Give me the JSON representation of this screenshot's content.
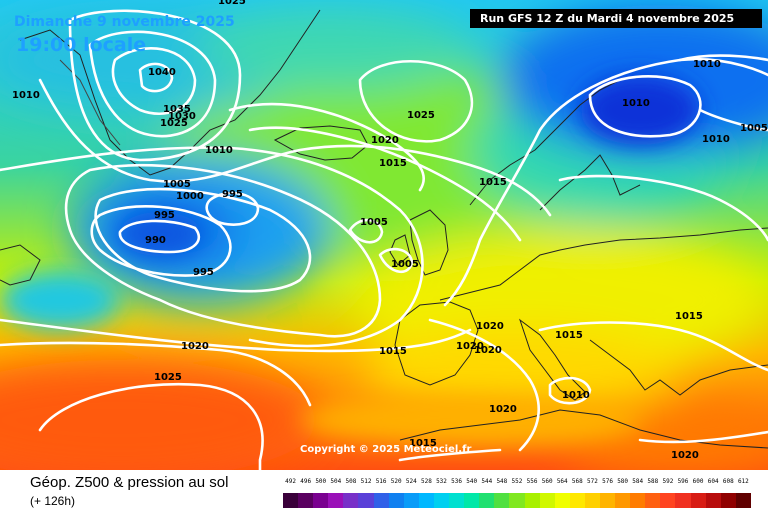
{
  "header": {
    "date": "Dimanche 9 novembre 2025",
    "time": "19:00 locale",
    "run": "Run GFS 12 Z du Mardi 4 novembre 2025"
  },
  "copyright": "Copyright © 2025 Meteociel.fr",
  "legend": {
    "title": "Géop. Z500 & pression au sol",
    "subtitle": "(+ 126h)",
    "scale_values": [
      "492",
      "496",
      "500",
      "504",
      "508",
      "512",
      "516",
      "520",
      "524",
      "528",
      "532",
      "536",
      "540",
      "544",
      "548",
      "552",
      "556",
      "560",
      "564",
      "568",
      "572",
      "576",
      "580",
      "584",
      "588",
      "592",
      "596",
      "600",
      "604",
      "608",
      "612"
    ],
    "scale_colors": [
      "#3a003a",
      "#5a0060",
      "#7a0090",
      "#9a10b8",
      "#7830c8",
      "#5a40d8",
      "#3060e8",
      "#1080f0",
      "#0a9cf8",
      "#00b8ff",
      "#00d0f0",
      "#00e0d0",
      "#00e8a8",
      "#20e070",
      "#50e040",
      "#80e820",
      "#a8f000",
      "#d0f800",
      "#f0ff00",
      "#ffe800",
      "#ffd000",
      "#ffb400",
      "#ff9800",
      "#ff7c00",
      "#ff6010",
      "#ff4420",
      "#f03020",
      "#d81c14",
      "#b80c0c",
      "#900000",
      "#600000"
    ]
  },
  "isobar_labels": [
    {
      "id": "1025-top",
      "text": "1025"
    },
    {
      "id": "1010-nw",
      "text": "1010"
    },
    {
      "id": "1040",
      "text": "1040"
    },
    {
      "id": "1035",
      "text": "1035"
    },
    {
      "id": "1030",
      "text": "1030"
    },
    {
      "id": "1025-greenland",
      "text": "1025"
    },
    {
      "id": "1010-greenland",
      "text": "1010"
    },
    {
      "id": "1005-low",
      "text": "1005"
    },
    {
      "id": "1000",
      "text": "1000"
    },
    {
      "id": "995-east",
      "text": "995"
    },
    {
      "id": "995-inner",
      "text": "995"
    },
    {
      "id": "990",
      "text": "990"
    },
    {
      "id": "995-south",
      "text": "995"
    },
    {
      "id": "1025-atlantic",
      "text": "1025"
    },
    {
      "id": "1020-iceland",
      "text": "1020"
    },
    {
      "id": "1015-iceland",
      "text": "1015"
    },
    {
      "id": "1015-norway",
      "text": "1015"
    },
    {
      "id": "1005-ireland",
      "text": "1005"
    },
    {
      "id": "1005-uk",
      "text": "1005"
    },
    {
      "id": "1010-scand",
      "text": "1010"
    },
    {
      "id": "1010-russia-n",
      "text": "1010"
    },
    {
      "id": "1005-russia",
      "text": "1005"
    },
    {
      "id": "1010-russia-s",
      "text": "1010"
    },
    {
      "id": "1020-france",
      "text": "1020"
    },
    {
      "id": "1015-alps",
      "text": "1015"
    },
    {
      "id": "1015-spain",
      "text": "1015"
    },
    {
      "id": "1020-spain-a",
      "text": "1020"
    },
    {
      "id": "1020-spain-b",
      "text": "1020"
    },
    {
      "id": "1015-balkan",
      "text": "1015"
    },
    {
      "id": "1010-italy",
      "text": "1010"
    },
    {
      "id": "1020-med",
      "text": "1020"
    },
    {
      "id": "1020-atl-south",
      "text": "1020"
    },
    {
      "id": "1025-azores",
      "text": "1025"
    },
    {
      "id": "1015-africa",
      "text": "1015"
    },
    {
      "id": "1020-east-med",
      "text": "1020"
    }
  ]
}
